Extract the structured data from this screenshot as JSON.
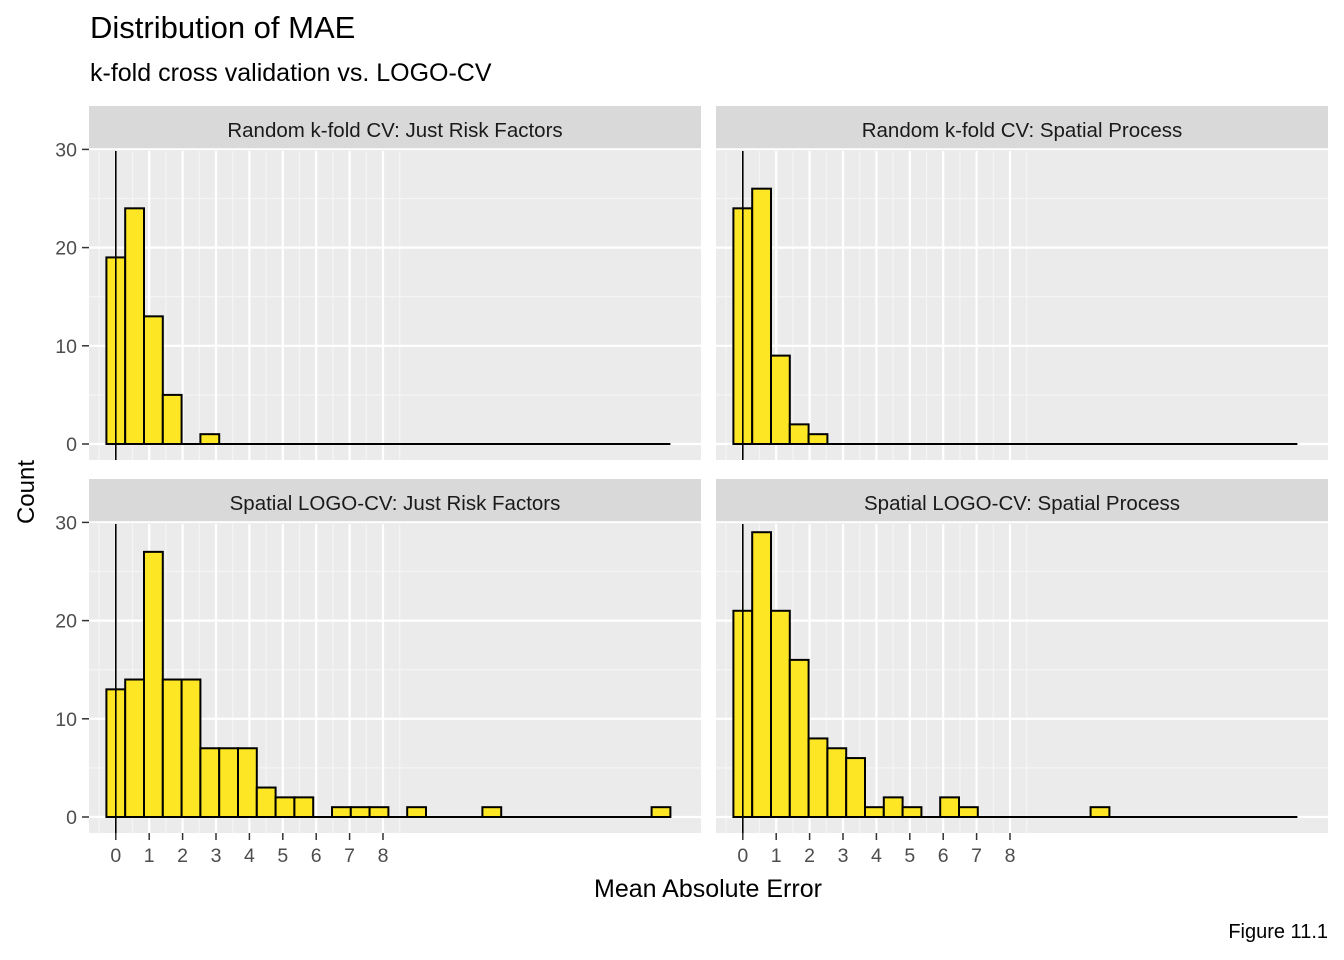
{
  "chart_data": {
    "type": "bar",
    "title": "Distribution of MAE",
    "subtitle": "k-fold cross validation vs. LOGO-CV",
    "xlabel": "Mean Absolute Error",
    "ylabel": "Count",
    "caption": "Figure 11.1",
    "xticks": [
      "0",
      "1",
      "2",
      "3",
      "4",
      "5",
      "6",
      "7",
      "8"
    ],
    "yticks": [
      "0",
      "10",
      "20",
      "30"
    ],
    "ylim": [
      0,
      30
    ],
    "bar_color": "#FDE725",
    "panel_background": "#EBEBEB",
    "strip_background": "#D9D9D9",
    "panels": [
      {
        "name": "Random k-fold CV: Just Risk Factors",
        "values": [
          19,
          24,
          13,
          5,
          0,
          1,
          0,
          0,
          0,
          0,
          0,
          0,
          0,
          0,
          0,
          0,
          0,
          0,
          0,
          0,
          0,
          0,
          0,
          0,
          0,
          0,
          0,
          0,
          0,
          0
        ]
      },
      {
        "name": "Random k-fold CV: Spatial Process",
        "values": [
          24,
          26,
          9,
          2,
          1,
          0,
          0,
          0,
          0,
          0,
          0,
          0,
          0,
          0,
          0,
          0,
          0,
          0,
          0,
          0,
          0,
          0,
          0,
          0,
          0,
          0,
          0,
          0,
          0,
          0
        ]
      },
      {
        "name": "Spatial LOGO-CV: Just Risk Factors",
        "values": [
          13,
          14,
          27,
          14,
          14,
          7,
          7,
          7,
          3,
          2,
          2,
          0,
          1,
          1,
          1,
          0,
          1,
          0,
          0,
          0,
          1,
          0,
          0,
          0,
          0,
          0,
          0,
          0,
          0,
          1
        ]
      },
      {
        "name": "Spatial LOGO-CV: Spatial Process",
        "values": [
          21,
          29,
          21,
          16,
          8,
          7,
          6,
          1,
          2,
          1,
          0,
          2,
          1,
          0,
          0,
          0,
          0,
          0,
          0,
          1,
          0,
          0,
          0,
          0,
          0,
          0,
          0,
          0,
          0,
          0
        ]
      }
    ]
  }
}
